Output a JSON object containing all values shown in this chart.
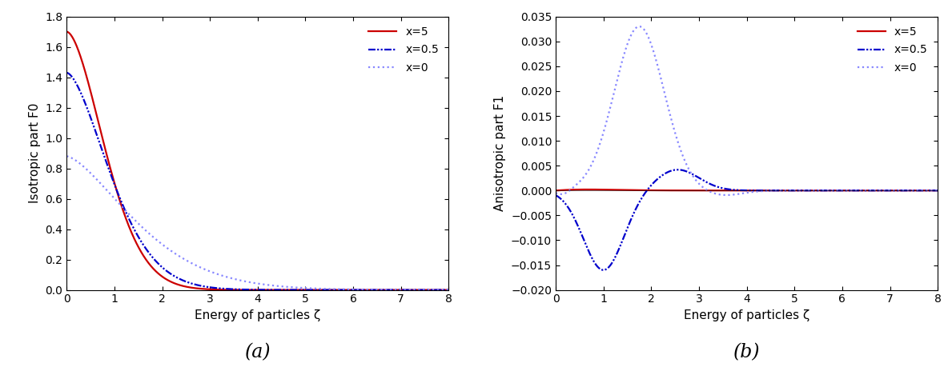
{
  "xlabel": "Energy of particles ζ",
  "ylabel_left": "Isotropic part F0",
  "ylabel_right": "Anisotropic part F1",
  "label_a": "(a)",
  "label_b": "(b)",
  "xlim": [
    0,
    8
  ],
  "ylim_left": [
    0,
    1.8
  ],
  "ylim_right": [
    -0.02,
    0.035
  ],
  "yticks_left": [
    0,
    0.2,
    0.4,
    0.6,
    0.8,
    1.0,
    1.2,
    1.4,
    1.6,
    1.8
  ],
  "yticks_right": [
    -0.02,
    -0.015,
    -0.01,
    -0.005,
    0.0,
    0.005,
    0.01,
    0.015,
    0.02,
    0.025,
    0.03,
    0.035
  ],
  "xticks": [
    0,
    1,
    2,
    3,
    4,
    5,
    6,
    7,
    8
  ],
  "legend_x5": "x=5",
  "legend_x05": "x=0.5",
  "legend_x0": "x=0",
  "color_x5": "#cc0000",
  "color_x05": "#0000cc",
  "color_x0": "#8888ff",
  "bg_color": "#ffffff"
}
